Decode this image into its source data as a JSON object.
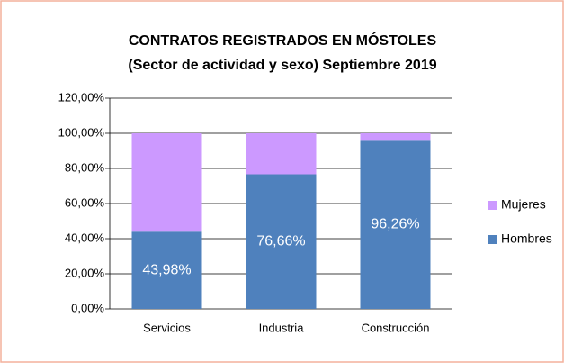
{
  "chart_data": {
    "type": "stacked_bar",
    "title": "CONTRATOS REGISTRADOS EN MÓSTOLES",
    "subtitle": "(Sector de actividad y sexo) Septiembre 2019",
    "categories": [
      "Servicios",
      "Industria",
      "Construcción"
    ],
    "series": [
      {
        "name": "Hombres",
        "color": "#4f81bd",
        "values": [
          43.98,
          76.66,
          96.26
        ],
        "value_labels": [
          "43,98%",
          "76,66%",
          "96,26%"
        ]
      },
      {
        "name": "Mujeres",
        "color": "#cc99ff",
        "values": [
          56.02,
          23.34,
          3.74
        ]
      }
    ],
    "ylim": [
      0,
      120
    ],
    "yticks": [
      {
        "value": 0,
        "label": "0,00%"
      },
      {
        "value": 20,
        "label": "20,00%"
      },
      {
        "value": 40,
        "label": "40,00%"
      },
      {
        "value": 60,
        "label": "60,00%"
      },
      {
        "value": 80,
        "label": "80,00%"
      },
      {
        "value": 100,
        "label": "100,00%"
      },
      {
        "value": 120,
        "label": "120,00%"
      }
    ],
    "grid": true,
    "legend": "right"
  }
}
